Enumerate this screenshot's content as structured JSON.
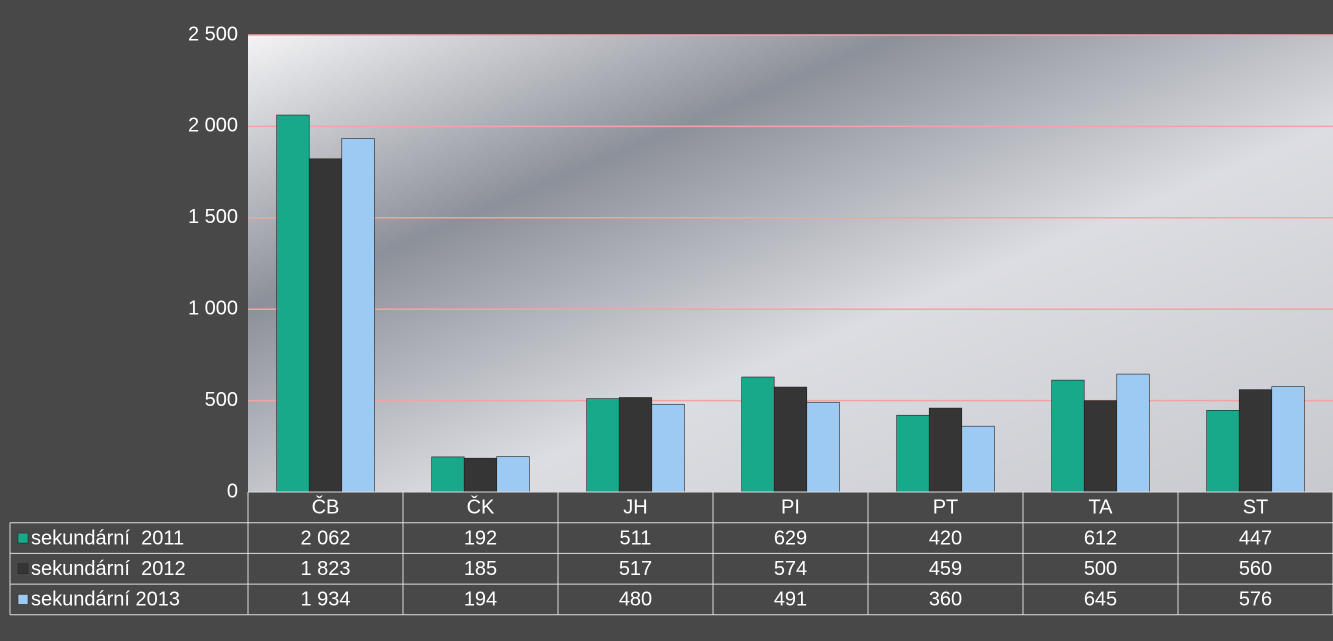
{
  "chart_data": {
    "type": "bar",
    "categories": [
      "ČB",
      "ČK",
      "JH",
      "PI",
      "PT",
      "TA",
      "ST"
    ],
    "series": [
      {
        "name": "sekundární  2011",
        "color": "#17a98a",
        "values": [
          2062,
          192,
          511,
          629,
          420,
          612,
          447
        ],
        "value_labels": [
          "2 062",
          "192",
          "511",
          "629",
          "420",
          "612",
          "447"
        ]
      },
      {
        "name": "sekundární  2012",
        "color": "#353535",
        "values": [
          1823,
          185,
          517,
          574,
          459,
          500,
          560
        ],
        "value_labels": [
          "1 823",
          "185",
          "517",
          "574",
          "459",
          "500",
          "560"
        ]
      },
      {
        "name": "sekundární 2013",
        "color": "#9ccaf3",
        "values": [
          1934,
          194,
          480,
          491,
          360,
          645,
          576
        ],
        "value_labels": [
          "1 934",
          "194",
          "480",
          "491",
          "360",
          "645",
          "576"
        ]
      }
    ],
    "ylim": [
      0,
      2500
    ],
    "yticks": [
      0,
      500,
      {
        "value": 1000,
        "label": "1 000"
      },
      {
        "value": 1500,
        "label": "1 500"
      },
      {
        "value": 2000,
        "label": "2 000"
      },
      {
        "value": 2500,
        "label": "2 500"
      }
    ],
    "grid": true
  }
}
